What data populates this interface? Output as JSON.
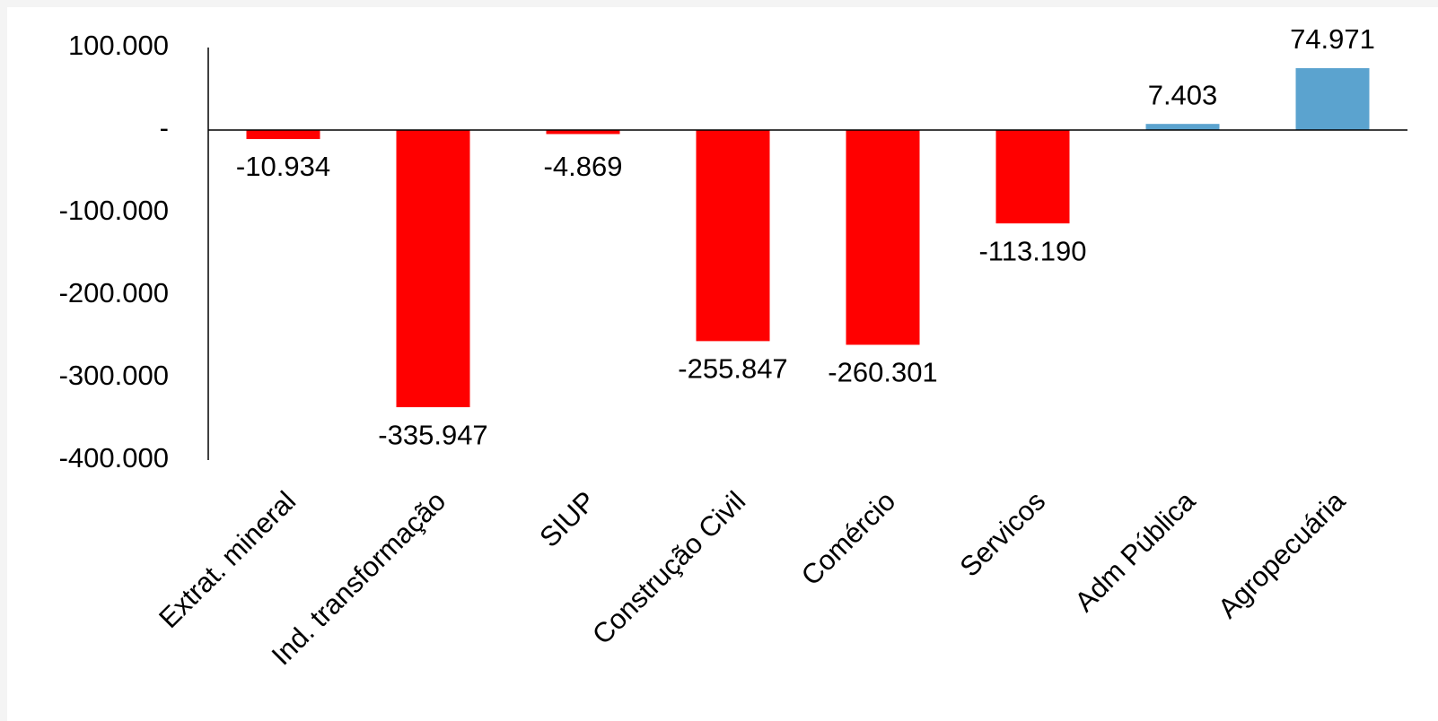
{
  "chart_data": {
    "type": "bar",
    "categories": [
      "Extrat. mineral",
      "Ind. transformação",
      "SIUP",
      "Construção Civil",
      "Comércio",
      "Servicos",
      "Adm Pública",
      "Agropecuária"
    ],
    "values": [
      -10934,
      -335947,
      -4869,
      -255847,
      -260301,
      -113190,
      7403,
      74971
    ],
    "value_labels": [
      "-10.934",
      "-335.947",
      "-4.869",
      "-255.847",
      "-260.301",
      "-113.190",
      "7.403",
      "74.971"
    ],
    "colors": [
      "#ff0000",
      "#ff0000",
      "#ff0000",
      "#ff0000",
      "#ff0000",
      "#ff0000",
      "#5ba3cf",
      "#5ba3cf"
    ],
    "ylim": [
      -400000,
      100000
    ],
    "yticks": [
      {
        "value": 100000,
        "label": "100.000"
      },
      {
        "value": 0,
        "label": "-"
      },
      {
        "value": -100000,
        "label": "-100.000"
      },
      {
        "value": -200000,
        "label": "-200.000"
      },
      {
        "value": -300000,
        "label": "-300.000"
      },
      {
        "value": -400000,
        "label": "-400.000"
      }
    ],
    "grid": false
  }
}
